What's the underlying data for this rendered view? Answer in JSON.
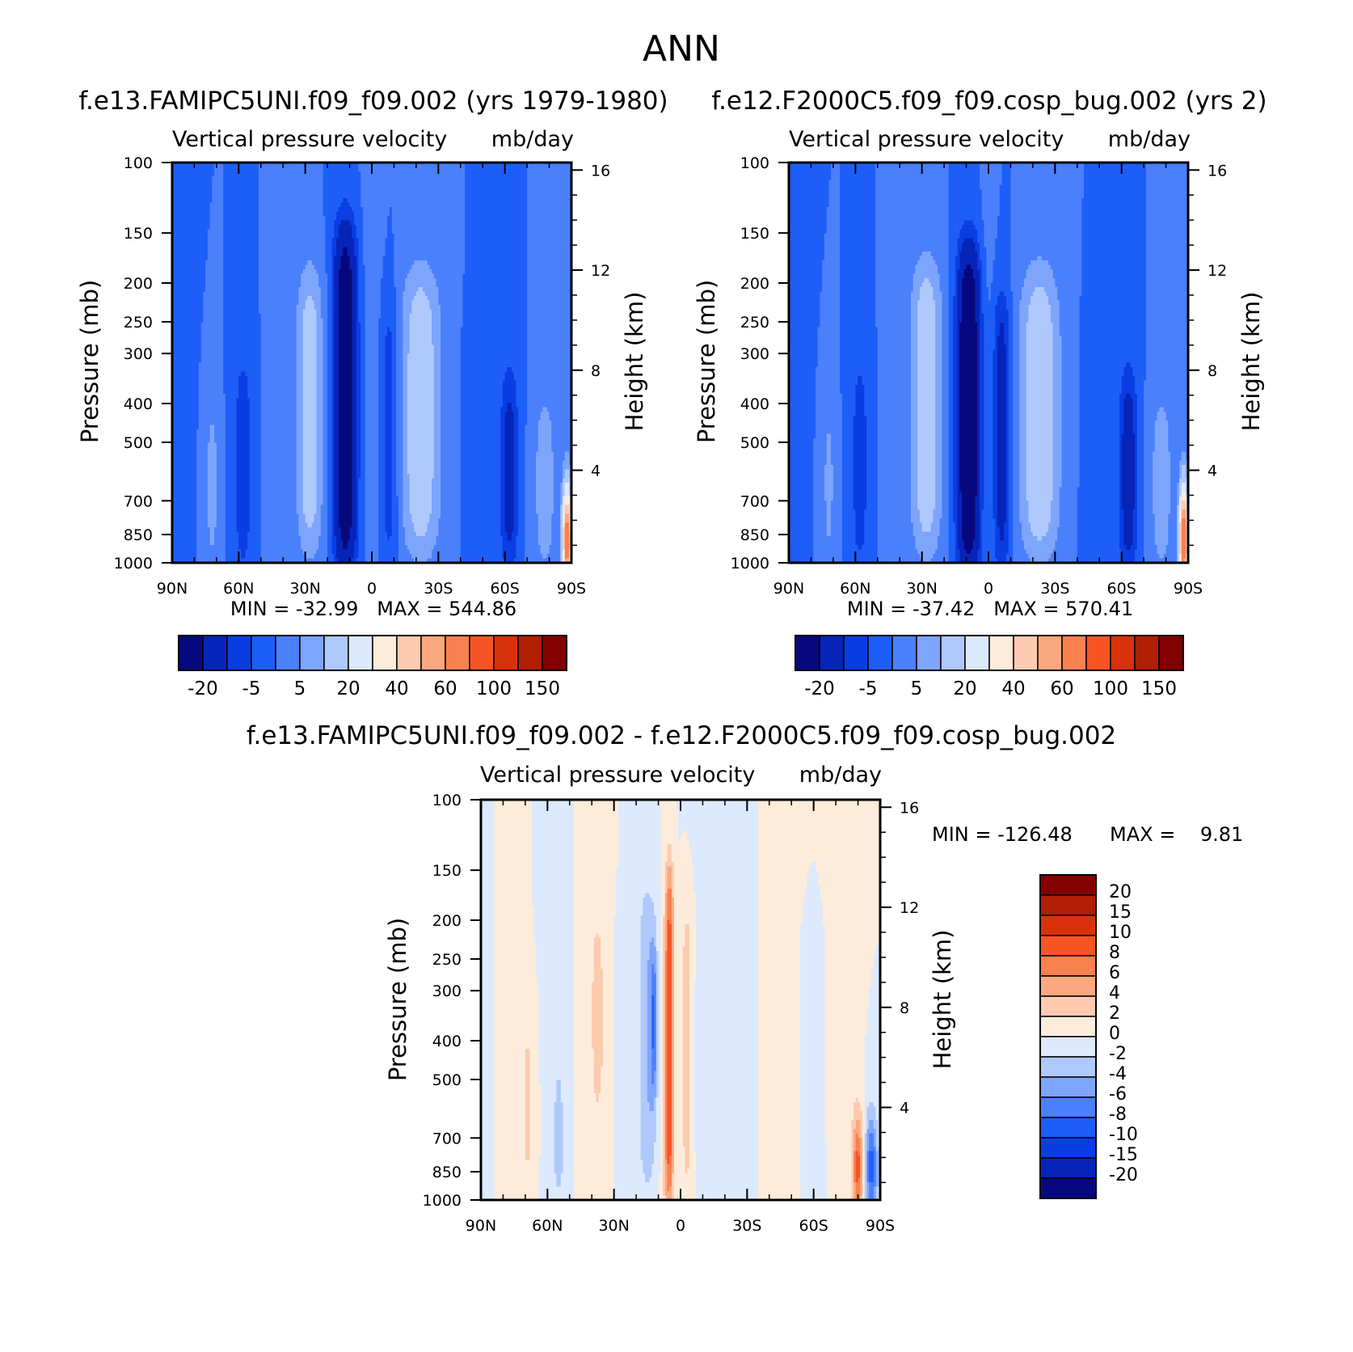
{
  "figure_title": "ANN",
  "colors": {
    "full_palette": [
      "#08087e",
      "#0624b8",
      "#0a3ee3",
      "#1e5ef8",
      "#4a80fb",
      "#7ea5fc",
      "#afc9fd",
      "#dde9fc",
      "#fdecdb",
      "#fccbb0",
      "#fba880",
      "#f9804f",
      "#f65423",
      "#d9310a",
      "#b21d05",
      "#820000"
    ],
    "diff_palette": [
      "#08087e",
      "#0624b8",
      "#0a3ee3",
      "#1e5ef8",
      "#4a80fb",
      "#7ea5fc",
      "#afc9fd",
      "#dde9fc",
      "#fdecdb",
      "#fccbb0",
      "#fba880",
      "#f9804f",
      "#f65423",
      "#d9310a",
      "#b21d05",
      "#820000"
    ]
  },
  "chart_data": [
    {
      "type": "heatmap",
      "panel": "left",
      "title": "f.e13.FAMIPC5UNI.f09_f09.002 (yrs 1979-1980)",
      "left_label": "Vertical pressure velocity",
      "right_label": "mb/day",
      "xlabel": "",
      "ylabel": "Pressure (mb)",
      "y2label": "Height (km)",
      "xlim": [
        -90,
        90
      ],
      "x_ticks": [
        {
          "value": -90,
          "label": "90N"
        },
        {
          "value": -60,
          "label": "60N"
        },
        {
          "value": -30,
          "label": "30N"
        },
        {
          "value": 0,
          "label": "0"
        },
        {
          "value": 30,
          "label": "30S"
        },
        {
          "value": 60,
          "label": "60S"
        },
        {
          "value": 90,
          "label": "90S"
        }
      ],
      "y_ticks": [
        {
          "value": 100,
          "label": "100"
        },
        {
          "value": 150,
          "label": "150"
        },
        {
          "value": 200,
          "label": "200"
        },
        {
          "value": 250,
          "label": "250"
        },
        {
          "value": 300,
          "label": "300"
        },
        {
          "value": 400,
          "label": "400"
        },
        {
          "value": 500,
          "label": "500"
        },
        {
          "value": 700,
          "label": "700"
        },
        {
          "value": 850,
          "label": "850"
        },
        {
          "value": 1000,
          "label": "1000"
        }
      ],
      "y2_ticks": [
        {
          "value": 16,
          "label": "16"
        },
        {
          "value": 12,
          "label": "12"
        },
        {
          "value": 8,
          "label": "8"
        },
        {
          "value": 4,
          "label": "4"
        }
      ],
      "ylim": [
        100,
        1000
      ],
      "y2lim": [
        0.3,
        16.3
      ],
      "stats": "MIN = -32.99   MAX = 544.86",
      "levels": [
        -20,
        -10,
        -5,
        0,
        5,
        10,
        20,
        30,
        40,
        50,
        60,
        80,
        100,
        120,
        150
      ],
      "colorbar_labels": [
        "-20",
        "-5",
        "5",
        "20",
        "40",
        "60",
        "100",
        "150"
      ],
      "features": [
        {
          "lat": -90,
          "value": -2,
          "width": 6,
          "ptop": 100,
          "pbot": 1000
        },
        {
          "lat": -72,
          "value": 8,
          "width": 3,
          "ptop": 420,
          "pbot": 960
        },
        {
          "lat": -58,
          "value": -9,
          "width": 4,
          "ptop": 320,
          "pbot": 1000
        },
        {
          "lat": -44,
          "value": 4,
          "width": 3,
          "ptop": 230,
          "pbot": 960
        },
        {
          "lat": -28,
          "value": 14,
          "width": 6,
          "ptop": 190,
          "pbot": 920
        },
        {
          "lat": -12,
          "value": -30,
          "width": 5,
          "ptop": 150,
          "pbot": 1000
        },
        {
          "lat": 0,
          "value": 3,
          "width": 4,
          "ptop": 100,
          "pbot": 1000
        },
        {
          "lat": 8,
          "value": -8,
          "width": 4,
          "ptop": 220,
          "pbot": 1000
        },
        {
          "lat": 22,
          "value": 15,
          "width": 9,
          "ptop": 190,
          "pbot": 930
        },
        {
          "lat": 47,
          "value": -5,
          "width": 4,
          "ptop": 250,
          "pbot": 1000
        },
        {
          "lat": 62,
          "value": -14,
          "width": 4,
          "ptop": 350,
          "pbot": 1000
        },
        {
          "lat": 78,
          "value": 9,
          "width": 5,
          "ptop": 400,
          "pbot": 1000
        },
        {
          "lat": 88,
          "value": 140,
          "width": 2,
          "ptop": 780,
          "pbot": 980
        }
      ]
    },
    {
      "type": "heatmap",
      "panel": "right",
      "title": "f.e12.F2000C5.f09_f09.cosp_bug.002 (yrs 2)",
      "left_label": "Vertical pressure velocity",
      "right_label": "mb/day",
      "xlabel": "",
      "ylabel": "Pressure (mb)",
      "y2label": "Height (km)",
      "xlim": [
        -90,
        90
      ],
      "x_ticks": [
        {
          "value": -90,
          "label": "90N"
        },
        {
          "value": -60,
          "label": "60N"
        },
        {
          "value": -30,
          "label": "30N"
        },
        {
          "value": 0,
          "label": "0"
        },
        {
          "value": 30,
          "label": "30S"
        },
        {
          "value": 60,
          "label": "60S"
        },
        {
          "value": 90,
          "label": "90S"
        }
      ],
      "y_ticks": [
        {
          "value": 100,
          "label": "100"
        },
        {
          "value": 150,
          "label": "150"
        },
        {
          "value": 200,
          "label": "200"
        },
        {
          "value": 250,
          "label": "250"
        },
        {
          "value": 300,
          "label": "300"
        },
        {
          "value": 400,
          "label": "400"
        },
        {
          "value": 500,
          "label": "500"
        },
        {
          "value": 700,
          "label": "700"
        },
        {
          "value": 850,
          "label": "850"
        },
        {
          "value": 1000,
          "label": "1000"
        }
      ],
      "y2_ticks": [
        {
          "value": 16,
          "label": "16"
        },
        {
          "value": 12,
          "label": "12"
        },
        {
          "value": 8,
          "label": "8"
        },
        {
          "value": 4,
          "label": "4"
        }
      ],
      "ylim": [
        100,
        1000
      ],
      "y2lim": [
        0.3,
        16.3
      ],
      "stats": "MIN = -37.42   MAX = 570.41",
      "levels": [
        -20,
        -10,
        -5,
        0,
        5,
        10,
        20,
        30,
        40,
        50,
        60,
        80,
        100,
        120,
        150
      ],
      "colorbar_labels": [
        "-20",
        "-5",
        "5",
        "20",
        "40",
        "60",
        "100",
        "150"
      ],
      "features": [
        {
          "lat": -90,
          "value": -2,
          "width": 6,
          "ptop": 100,
          "pbot": 1000
        },
        {
          "lat": -72,
          "value": 7,
          "width": 3,
          "ptop": 420,
          "pbot": 960
        },
        {
          "lat": -58,
          "value": -8,
          "width": 4,
          "ptop": 320,
          "pbot": 1000
        },
        {
          "lat": -44,
          "value": 5,
          "width": 3,
          "ptop": 230,
          "pbot": 960
        },
        {
          "lat": -28,
          "value": 15,
          "width": 7,
          "ptop": 180,
          "pbot": 920
        },
        {
          "lat": -9,
          "value": -34,
          "width": 5,
          "ptop": 170,
          "pbot": 1000
        },
        {
          "lat": 0,
          "value": 2,
          "width": 3,
          "ptop": 100,
          "pbot": 1000
        },
        {
          "lat": 6,
          "value": -14,
          "width": 4,
          "ptop": 220,
          "pbot": 1000
        },
        {
          "lat": 23,
          "value": 16,
          "width": 9,
          "ptop": 190,
          "pbot": 930
        },
        {
          "lat": 47,
          "value": -5,
          "width": 4,
          "ptop": 250,
          "pbot": 1000
        },
        {
          "lat": 63,
          "value": -16,
          "width": 4,
          "ptop": 350,
          "pbot": 1000
        },
        {
          "lat": 78,
          "value": 9,
          "width": 5,
          "ptop": 400,
          "pbot": 1000
        },
        {
          "lat": 88,
          "value": 150,
          "width": 2,
          "ptop": 780,
          "pbot": 980
        }
      ]
    },
    {
      "type": "heatmap",
      "panel": "difference",
      "title": "f.e13.FAMIPC5UNI.f09_f09.002 - f.e12.F2000C5.f09_f09.cosp_bug.002",
      "left_label": "Vertical pressure velocity",
      "right_label": "mb/day",
      "xlabel": "",
      "ylabel": "Pressure (mb)",
      "y2label": "Height (km)",
      "xlim": [
        -90,
        90
      ],
      "x_ticks": [
        {
          "value": -90,
          "label": "90N"
        },
        {
          "value": -60,
          "label": "60N"
        },
        {
          "value": -30,
          "label": "30N"
        },
        {
          "value": 0,
          "label": "0"
        },
        {
          "value": 30,
          "label": "30S"
        },
        {
          "value": 60,
          "label": "60S"
        },
        {
          "value": 90,
          "label": "90S"
        }
      ],
      "y_ticks": [
        {
          "value": 100,
          "label": "100"
        },
        {
          "value": 150,
          "label": "150"
        },
        {
          "value": 200,
          "label": "200"
        },
        {
          "value": 250,
          "label": "250"
        },
        {
          "value": 300,
          "label": "300"
        },
        {
          "value": 400,
          "label": "400"
        },
        {
          "value": 500,
          "label": "500"
        },
        {
          "value": 700,
          "label": "700"
        },
        {
          "value": 850,
          "label": "850"
        },
        {
          "value": 1000,
          "label": "1000"
        }
      ],
      "y2_ticks": [
        {
          "value": 16,
          "label": "16"
        },
        {
          "value": 12,
          "label": "12"
        },
        {
          "value": 8,
          "label": "8"
        },
        {
          "value": 4,
          "label": "4"
        }
      ],
      "ylim": [
        100,
        1000
      ],
      "y2lim": [
        0.3,
        16.3
      ],
      "stats_min": "MIN = -126.48",
      "stats_max": "MAX =    9.81",
      "levels": [
        -20,
        -15,
        -10,
        -8,
        -6,
        -4,
        -2,
        0,
        2,
        4,
        6,
        8,
        10,
        15,
        20
      ],
      "colorbar_labels": [
        "20",
        "15",
        "10",
        "8",
        "6",
        "4",
        "2",
        "0",
        "-2",
        "-4",
        "-6",
        "-8",
        "-10",
        "-15",
        "-20"
      ],
      "features": [
        {
          "lat": -88,
          "value": -1,
          "width": 6,
          "ptop": 100,
          "pbot": 1000
        },
        {
          "lat": -80,
          "value": 1,
          "width": 5,
          "ptop": 100,
          "pbot": 1000
        },
        {
          "lat": -69,
          "value": 2.5,
          "width": 3,
          "ptop": 350,
          "pbot": 960
        },
        {
          "lat": -55,
          "value": -1.5,
          "width": 5,
          "ptop": 120,
          "pbot": 1000
        },
        {
          "lat": -55,
          "value": -3,
          "width": 2,
          "ptop": 600,
          "pbot": 880
        },
        {
          "lat": -40,
          "value": 1.5,
          "width": 6,
          "ptop": 130,
          "pbot": 1000
        },
        {
          "lat": -37,
          "value": 3,
          "width": 2,
          "ptop": 240,
          "pbot": 500
        },
        {
          "lat": -25,
          "value": -1.5,
          "width": 3,
          "ptop": 200,
          "pbot": 1000
        },
        {
          "lat": -15,
          "value": -4,
          "width": 4,
          "ptop": 170,
          "pbot": 900
        },
        {
          "lat": -12,
          "value": -7,
          "width": 1.5,
          "ptop": 250,
          "pbot": 520
        },
        {
          "lat": -7,
          "value": 2,
          "width": 2,
          "ptop": 230,
          "pbot": 1000
        },
        {
          "lat": -5,
          "value": 9,
          "width": 2,
          "ptop": 150,
          "pbot": 1000
        },
        {
          "lat": 3,
          "value": 3,
          "width": 3,
          "ptop": 180,
          "pbot": 950
        },
        {
          "lat": 8,
          "value": -1.5,
          "width": 3,
          "ptop": 300,
          "pbot": 700
        },
        {
          "lat": 20,
          "value": -1,
          "width": 12,
          "ptop": 100,
          "pbot": 1000
        },
        {
          "lat": 45,
          "value": 1,
          "width": 8,
          "ptop": 100,
          "pbot": 1000
        },
        {
          "lat": 60,
          "value": -1,
          "width": 6,
          "ptop": 200,
          "pbot": 1000
        },
        {
          "lat": 72,
          "value": 1.5,
          "width": 6,
          "ptop": 100,
          "pbot": 900
        },
        {
          "lat": 80,
          "value": 14,
          "width": 2.5,
          "ptop": 700,
          "pbot": 980
        },
        {
          "lat": 86,
          "value": -14,
          "width": 3,
          "ptop": 700,
          "pbot": 980
        }
      ]
    }
  ]
}
